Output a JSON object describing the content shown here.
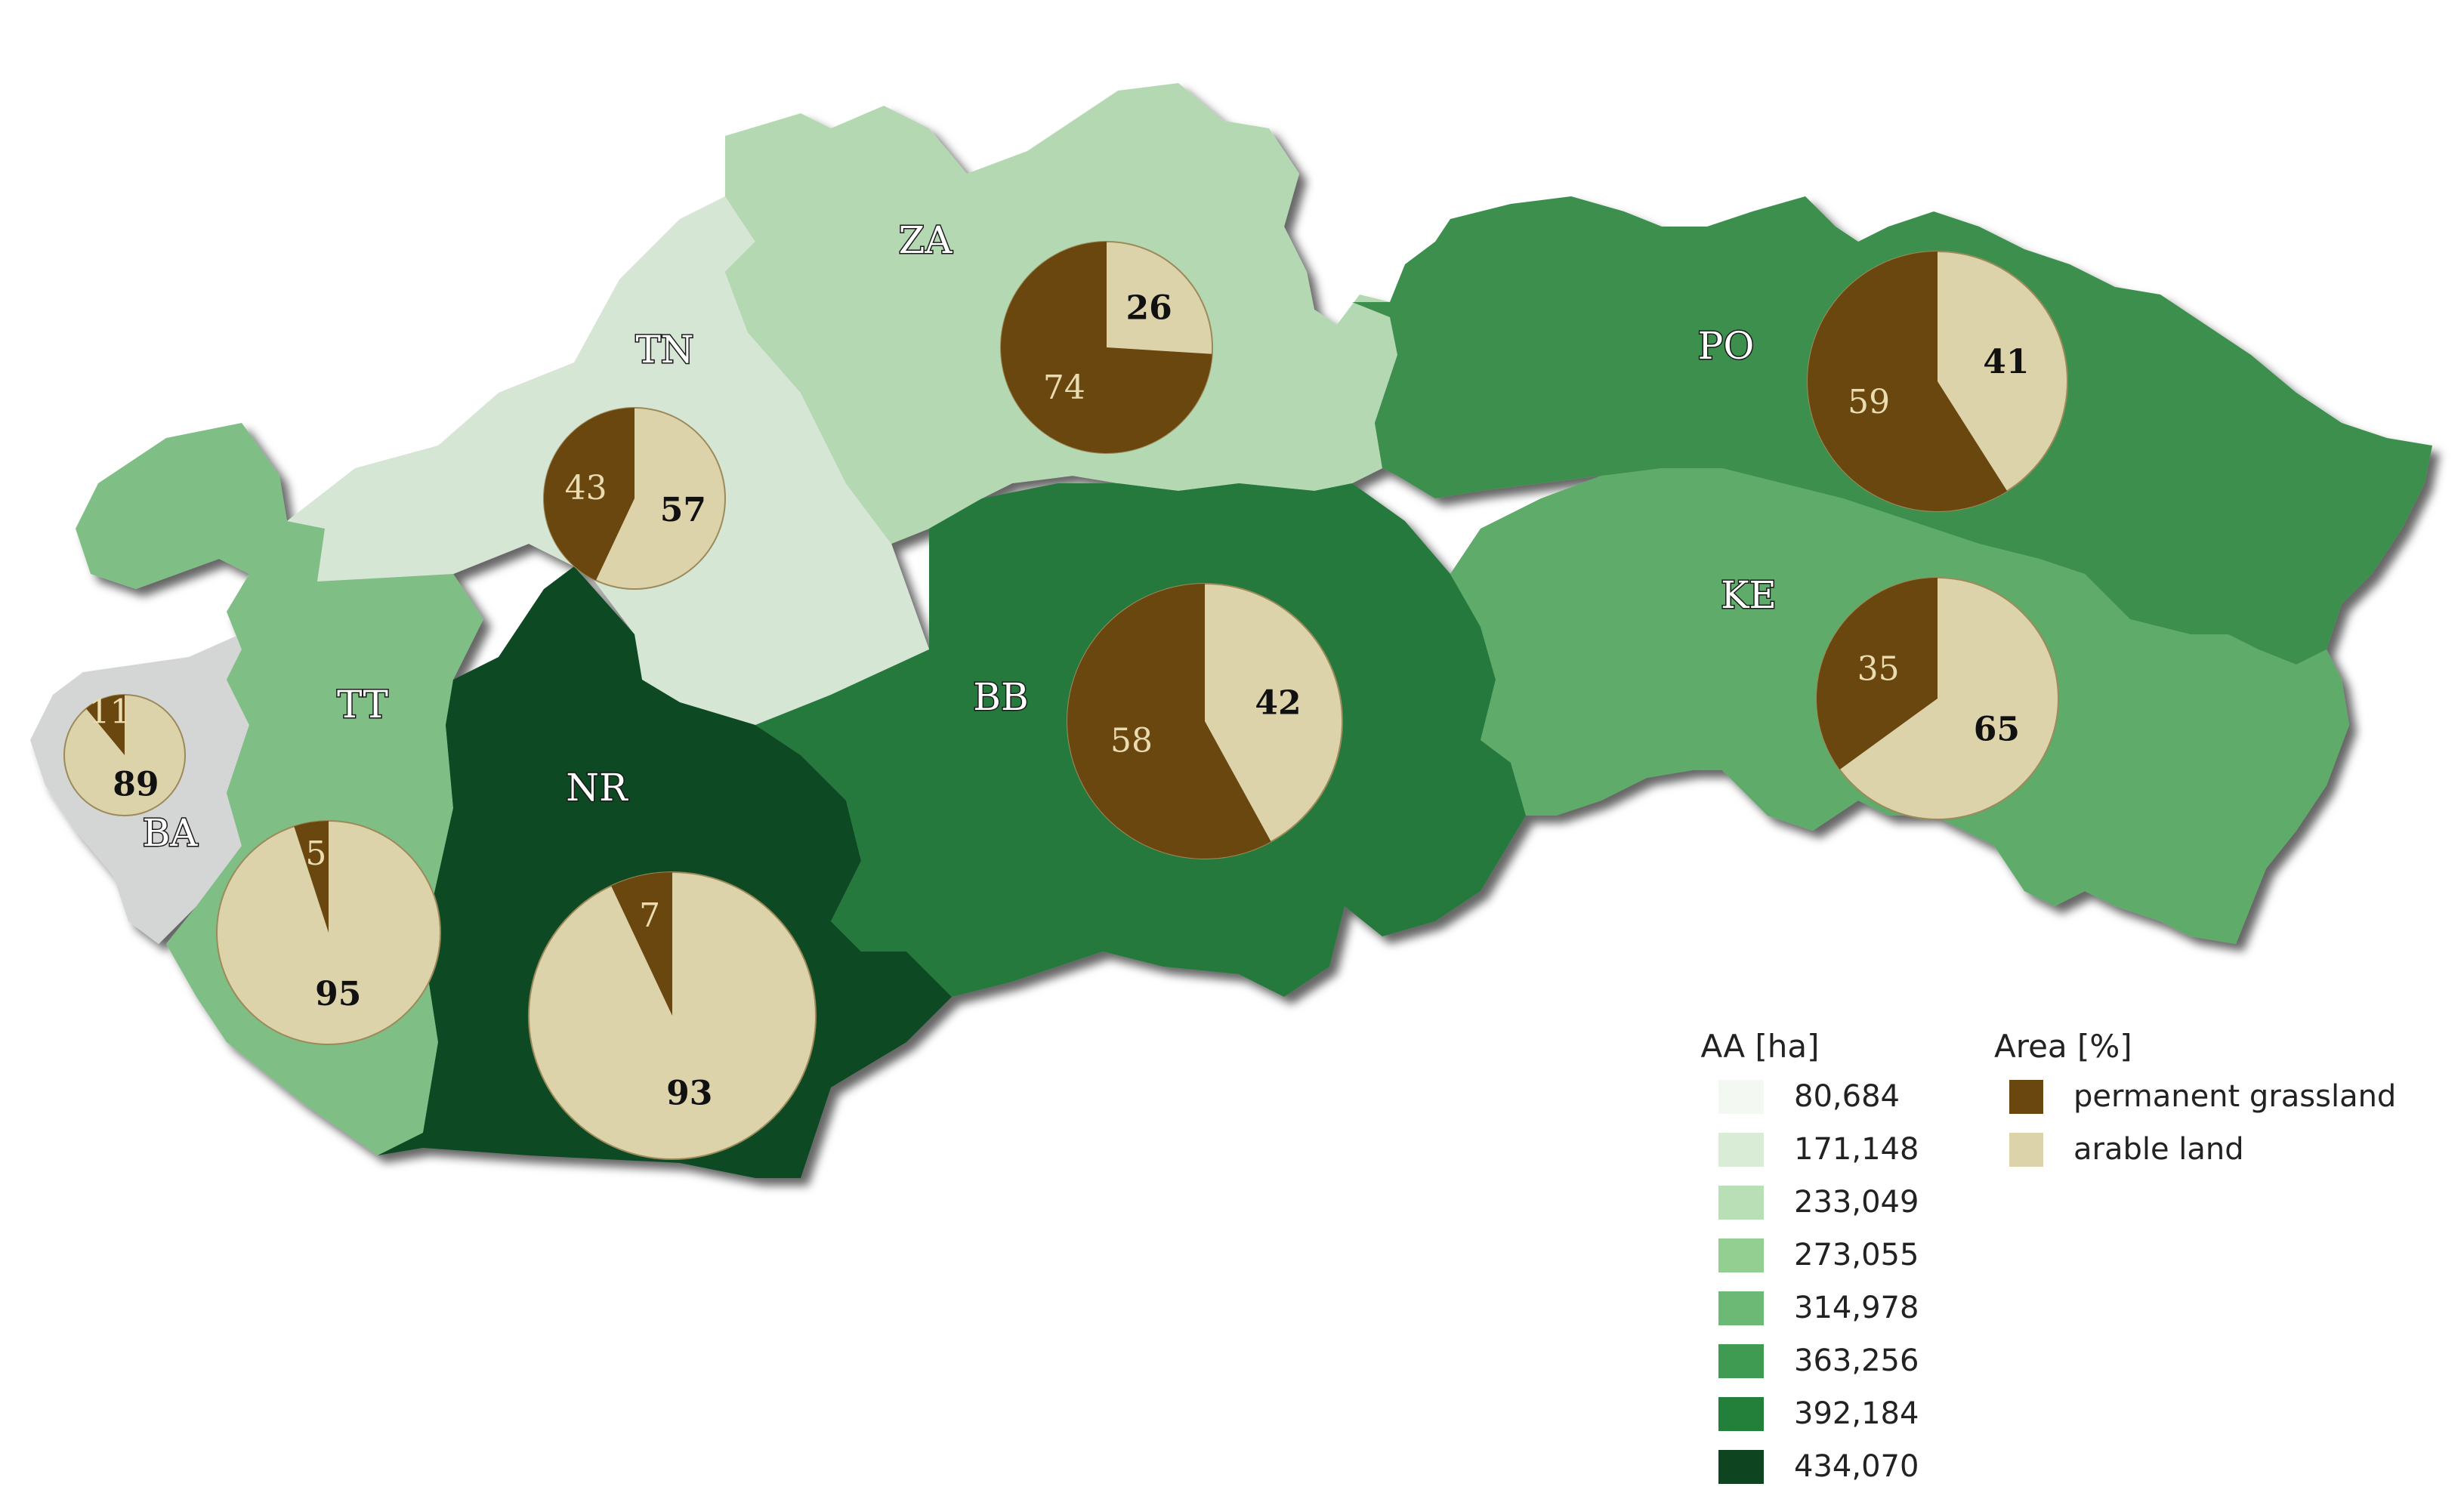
{
  "map": {
    "regions": [
      {
        "code": "BA",
        "fill": "#d3d6d4"
      },
      {
        "code": "TT",
        "fill": "#7fbf86"
      },
      {
        "code": "TN",
        "fill": "#d6e6d4"
      },
      {
        "code": "NR",
        "fill": "#0f4a22"
      },
      {
        "code": "ZA",
        "fill": "#b4d8b2"
      },
      {
        "code": "BB",
        "fill": "#26793c"
      },
      {
        "code": "PO",
        "fill": "#3d8f4e"
      },
      {
        "code": "KE",
        "fill": "#5fab6a"
      }
    ],
    "pies": [
      {
        "region": "BA",
        "grassland": 11,
        "arable": 89
      },
      {
        "region": "TT",
        "grassland": 5,
        "arable": 95
      },
      {
        "region": "TN",
        "grassland": 43,
        "arable": 57
      },
      {
        "region": "NR",
        "grassland": 7,
        "arable": 93
      },
      {
        "region": "ZA",
        "grassland": 74,
        "arable": 26
      },
      {
        "region": "BB",
        "grassland": 58,
        "arable": 42
      },
      {
        "region": "PO",
        "grassland": 59,
        "arable": 41
      },
      {
        "region": "KE",
        "grassland": 35,
        "arable": 65
      }
    ]
  },
  "legend_aa": {
    "title": "AA [ha]",
    "classes": [
      {
        "label": "80,684",
        "color": "#f3f8f2"
      },
      {
        "label": "171,148",
        "color": "#d8ecd6"
      },
      {
        "label": "233,049",
        "color": "#b9dfb6"
      },
      {
        "label": "273,055",
        "color": "#94cf92"
      },
      {
        "label": "314,978",
        "color": "#6bb974"
      },
      {
        "label": "363,256",
        "color": "#3f9a52"
      },
      {
        "label": "392,184",
        "color": "#22803a"
      },
      {
        "label": "434,070",
        "color": "#0e4520"
      }
    ]
  },
  "legend_area": {
    "title": "Area [%]",
    "items": [
      {
        "label": "permanent grassland",
        "color": "#6b4710"
      },
      {
        "label": "arable land",
        "color": "#ddd3ab"
      }
    ]
  },
  "colors": {
    "grassland": "#6b4710",
    "arable": "#ddd3ab",
    "pie_outline": "#9c8a5a"
  }
}
